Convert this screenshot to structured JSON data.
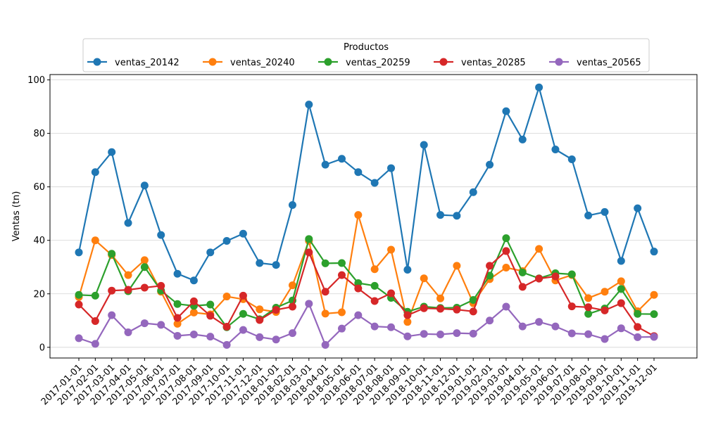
{
  "chart_data": {
    "type": "line",
    "title": "",
    "xlabel": "",
    "ylabel": "Ventas (tn)",
    "ylim": [
      -4,
      102
    ],
    "yticks": [
      0,
      20,
      40,
      60,
      80,
      100
    ],
    "grid": "y",
    "legend": {
      "title": "Productos",
      "placement": "top-center"
    },
    "categories": [
      "2017-01-01",
      "2017-02-01",
      "2017-03-01",
      "2017-04-01",
      "2017-05-01",
      "2017-06-01",
      "2017-07-01",
      "2017-08-01",
      "2017-09-01",
      "2017-10-01",
      "2017-11-01",
      "2017-12-01",
      "2018-01-01",
      "2018-02-01",
      "2018-03-01",
      "2018-04-01",
      "2018-05-01",
      "2018-06-01",
      "2018-07-01",
      "2018-08-01",
      "2018-09-01",
      "2018-10-01",
      "2018-11-01",
      "2018-12-01",
      "2019-01-01",
      "2019-02-01",
      "2019-03-01",
      "2019-04-01",
      "2019-05-01",
      "2019-06-01",
      "2019-07-01",
      "2019-08-01",
      "2019-09-01",
      "2019-10-01",
      "2019-11-01",
      "2019-12-01"
    ],
    "series": [
      {
        "name": "ventas_20142",
        "color": "#1f77b4",
        "values": [
          35.5,
          65.5,
          73,
          46.5,
          60.5,
          42,
          27.5,
          25,
          35.5,
          39.8,
          42.5,
          31.5,
          30.8,
          53.2,
          90.8,
          68.3,
          70.5,
          65.5,
          61.5,
          67,
          29,
          75.7,
          49.5,
          49.2,
          58,
          68.3,
          88.3,
          77.7,
          97.2,
          74,
          70.3,
          49.3,
          50.6,
          32.3,
          52,
          35.8
        ]
      },
      {
        "name": "ventas_20240",
        "color": "#ff7f0e",
        "values": [
          18.8,
          40,
          34.5,
          27,
          32.6,
          20.8,
          8.8,
          13,
          12.3,
          19,
          18,
          14.2,
          13.2,
          23.2,
          39.8,
          12.6,
          13.1,
          49.5,
          29.2,
          36.5,
          9.5,
          25.8,
          18.3,
          30.5,
          16.5,
          25.5,
          29.8,
          28.5,
          36.8,
          25,
          27,
          18.4,
          20.8,
          24.7,
          13.5,
          19.6
        ]
      },
      {
        "name": "ventas_20259",
        "color": "#2ca02c",
        "values": [
          19.6,
          19.3,
          35,
          21,
          30,
          21.2,
          16.2,
          15.5,
          16,
          7.5,
          12.5,
          10.5,
          14.8,
          17.5,
          40.5,
          31.4,
          31.5,
          24,
          23,
          18.5,
          13.3,
          15.2,
          14.7,
          14.8,
          17.7,
          26.8,
          40.8,
          28,
          25.8,
          27.7,
          27.3,
          12.5,
          14.5,
          21.8,
          12.5,
          12.4
        ]
      },
      {
        "name": "ventas_20285",
        "color": "#d62728",
        "values": [
          16,
          9.8,
          21.2,
          21.5,
          22.3,
          23,
          11,
          17.2,
          11.8,
          7.7,
          19.3,
          10.2,
          14,
          15.2,
          35.5,
          20.8,
          27,
          22,
          17.3,
          20.2,
          12,
          14.6,
          14.4,
          14.1,
          13.4,
          30.5,
          36,
          22.6,
          25.7,
          26.5,
          15.3,
          15,
          13.8,
          16.5,
          7.6,
          4.2
        ]
      },
      {
        "name": "ventas_20565",
        "color": "#9467bd",
        "values": [
          3.4,
          1.3,
          12,
          5.6,
          9,
          8.4,
          4.3,
          4.8,
          4,
          0.9,
          6.5,
          3.8,
          2.9,
          5.3,
          16.3,
          0.9,
          7,
          12,
          7.8,
          7.5,
          4.1,
          5,
          4.8,
          5.3,
          5.1,
          10,
          15.2,
          7.8,
          9.5,
          7.8,
          5.2,
          4.9,
          3.1,
          7.1,
          3.8,
          3.9
        ]
      }
    ]
  }
}
